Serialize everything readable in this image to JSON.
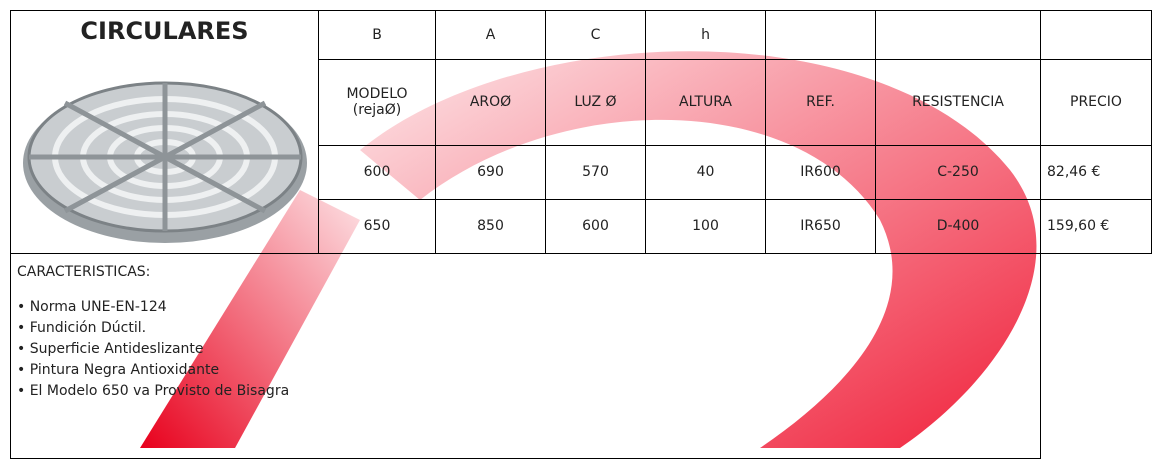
{
  "header": {
    "title": "CIRCULARES"
  },
  "table": {
    "letters": [
      "B",
      "A",
      "C",
      "h"
    ],
    "columns": [
      "MODELO (rejaØ)",
      "AROØ",
      "LUZ Ø",
      "ALTURA",
      "REF.",
      "RESISTENCIA",
      "PRECIO"
    ],
    "rows": [
      [
        "600",
        "690",
        "570",
        "40",
        "IR600",
        "C-250",
        "82,46 €"
      ],
      [
        "650",
        "850",
        "600",
        "100",
        "IR650",
        "D-400",
        "159,60 €"
      ]
    ]
  },
  "features": {
    "title": "CARACTERISTICAS:",
    "items": [
      "• Norma UNE-EN-124",
      "• Fundición Dúctil.",
      "• Superficie Antideslizante",
      "• Pintura Negra Antioxidante",
      "• El Modelo 650 va Provisto de Bisagra"
    ]
  }
}
